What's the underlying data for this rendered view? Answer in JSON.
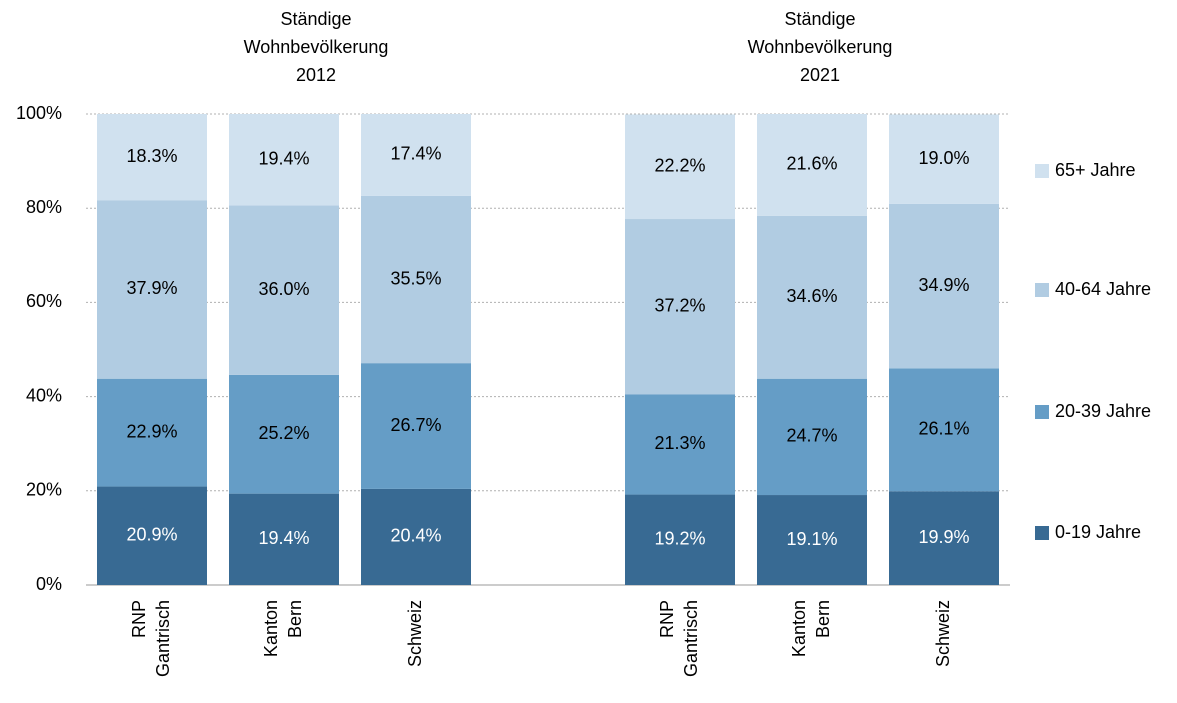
{
  "chart_data": {
    "type": "stacked_bar",
    "group_titles": [
      [
        "Ständige",
        "Wohnbevölkerung",
        "2012"
      ],
      [
        "Ständige",
        "Wohnbevölkerung",
        "2021"
      ]
    ],
    "categories": [
      [
        "RNP",
        "Gantrisch"
      ],
      [
        "Kanton",
        "Bern"
      ],
      [
        "Schweiz"
      ],
      null,
      [
        "RNP",
        "Gantrisch"
      ],
      [
        "Kanton",
        "Bern"
      ],
      [
        "Schweiz"
      ]
    ],
    "series": [
      {
        "name": "0-19 Jahre",
        "color": "#386a93",
        "label_color": "#ffffff",
        "values": [
          20.9,
          19.4,
          20.4,
          null,
          19.2,
          19.1,
          19.9
        ],
        "value_labels": [
          "20.9%",
          "19.4%",
          "20.4%",
          null,
          "19.2%",
          "19.1%",
          "19.9%"
        ]
      },
      {
        "name": "20-39 Jahre",
        "color": "#659dc6",
        "label_color": "#000000",
        "values": [
          22.9,
          25.2,
          26.7,
          null,
          21.3,
          24.7,
          26.1
        ],
        "value_labels": [
          "22.9%",
          "25.2%",
          "26.7%",
          null,
          "21.3%",
          "24.7%",
          "26.1%"
        ]
      },
      {
        "name": "40-64 Jahre",
        "color": "#b1cce2",
        "label_color": "#000000",
        "values": [
          37.9,
          36.0,
          35.5,
          null,
          37.2,
          34.6,
          34.9
        ],
        "value_labels": [
          "37.9%",
          "36.0%",
          "35.5%",
          null,
          "37.2%",
          "34.6%",
          "34.9%"
        ]
      },
      {
        "name": "65+ Jahre",
        "color": "#d0e1ef",
        "label_color": "#000000",
        "values": [
          18.3,
          19.4,
          17.4,
          null,
          22.2,
          21.6,
          19.0
        ],
        "value_labels": [
          "18.3%",
          "19.4%",
          "17.4%",
          null,
          "22.2%",
          "21.6%",
          "19.0%"
        ]
      }
    ],
    "ylim": [
      0,
      100
    ],
    "yticks": [
      {
        "value": 0,
        "label": "0%"
      },
      {
        "value": 20,
        "label": "20%"
      },
      {
        "value": 40,
        "label": "40%"
      },
      {
        "value": 60,
        "label": "60%"
      },
      {
        "value": 80,
        "label": "80%"
      },
      {
        "value": 100,
        "label": "100%"
      }
    ],
    "grid": true,
    "legend": "right"
  }
}
